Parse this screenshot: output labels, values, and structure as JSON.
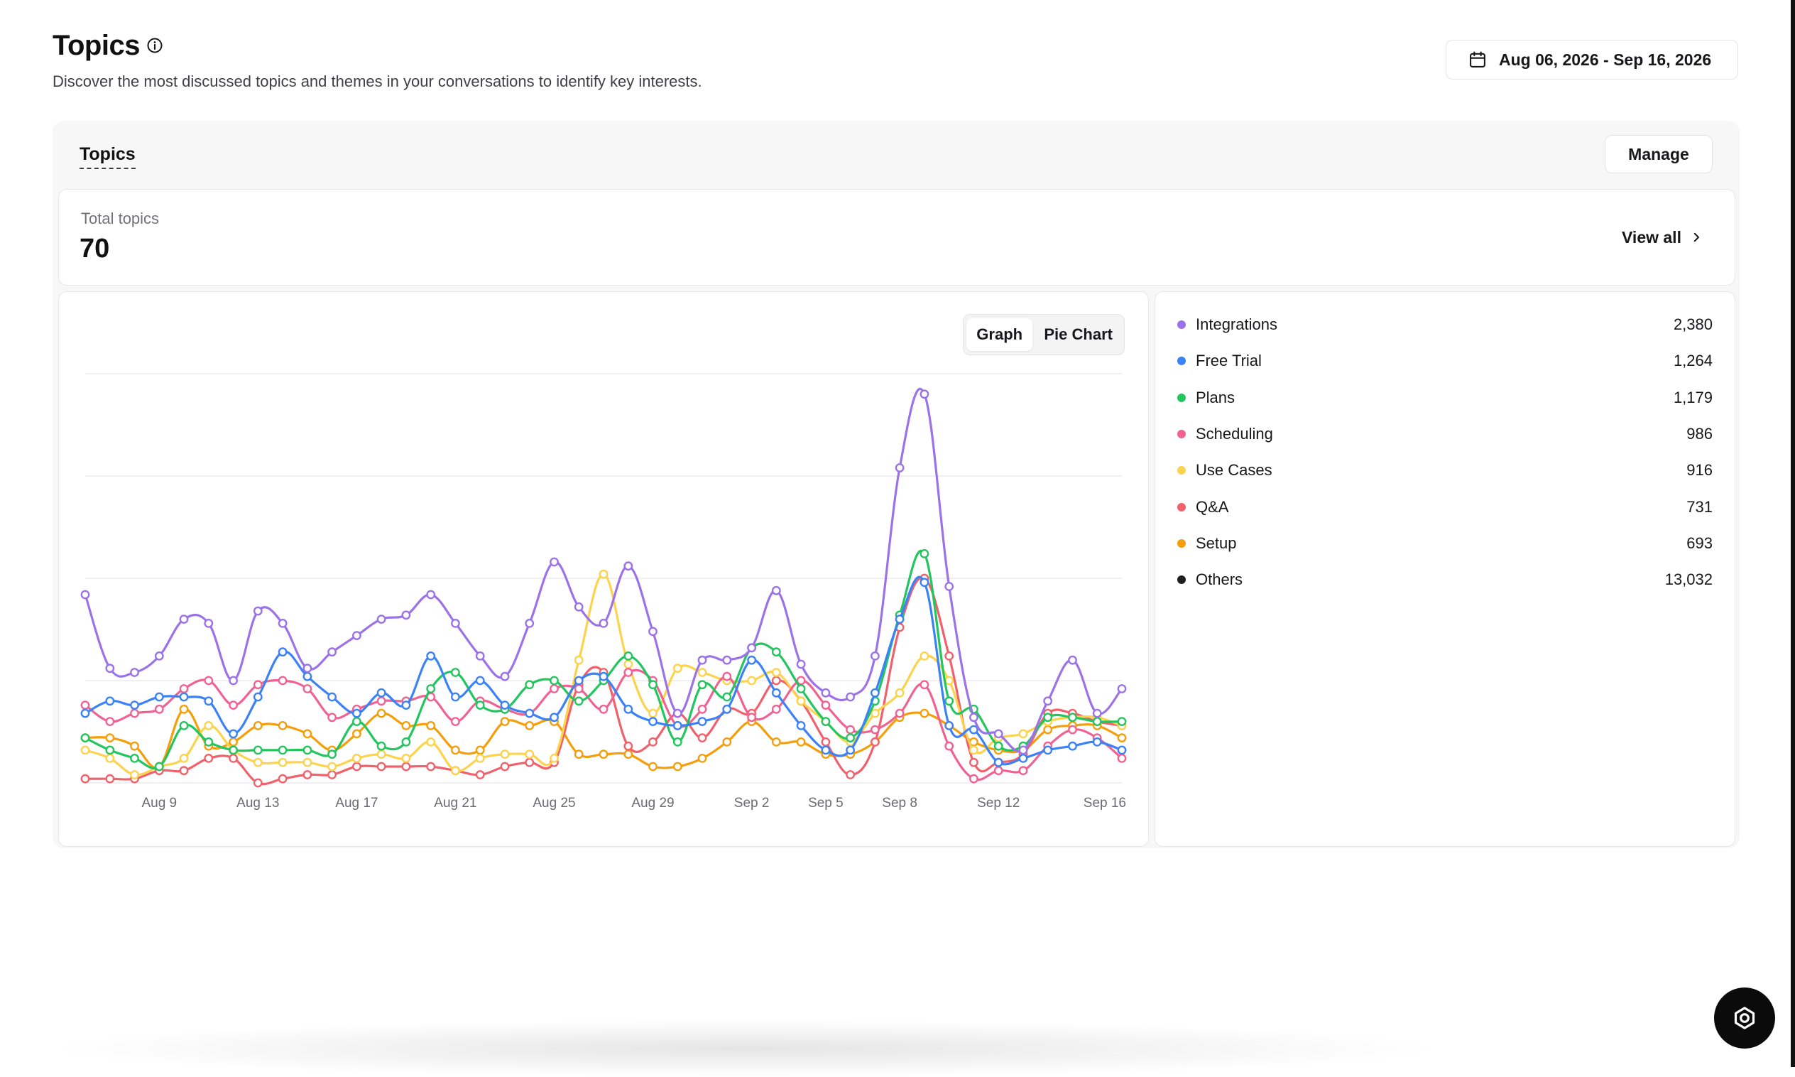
{
  "header": {
    "title": "Topics",
    "subtitle": "Discover the most discussed topics and themes in your conversations to identify key interests.",
    "date_range": "Aug 06, 2026 - Sep 16, 2026"
  },
  "panel": {
    "tab_label": "Topics",
    "manage_label": "Manage",
    "total_label": "Total topics",
    "total_value": "70",
    "view_all_label": "View all"
  },
  "view_toggle": {
    "graph_label": "Graph",
    "pie_label": "Pie Chart",
    "selected": "Graph"
  },
  "legend": [
    {
      "name": "Integrations",
      "value": "2,380",
      "color": "#9b72e8"
    },
    {
      "name": "Free Trial",
      "value": "1,264",
      "color": "#3b82f6"
    },
    {
      "name": "Plans",
      "value": "1,179",
      "color": "#22c55e"
    },
    {
      "name": "Scheduling",
      "value": "986",
      "color": "#f06292"
    },
    {
      "name": "Use Cases",
      "value": "916",
      "color": "#fcd34d"
    },
    {
      "name": "Q&A",
      "value": "731",
      "color": "#f0616b"
    },
    {
      "name": "Setup",
      "value": "693",
      "color": "#f59e0b"
    },
    {
      "name": "Others",
      "value": "13,032",
      "color": "#1f1f1f"
    }
  ],
  "chart_data": {
    "type": "line",
    "title": "",
    "xlabel": "",
    "ylabel": "",
    "x_tick_labels": [
      "Aug 9",
      "Aug 13",
      "Aug 17",
      "Aug 21",
      "Aug 25",
      "Aug 29",
      "Sep 2",
      "Sep 5",
      "Sep 8",
      "Sep 12",
      "Sep 16"
    ],
    "x_tick_index": [
      3,
      7,
      11,
      15,
      19,
      23,
      27,
      30,
      33,
      37,
      41
    ],
    "ylim": [
      0,
      100
    ],
    "grid": true,
    "y_tick_labels_shown": false,
    "series": [
      {
        "name": "Integrations",
        "color": "#9b72e8",
        "values": [
          46,
          28,
          27,
          31,
          40,
          39,
          25,
          42,
          39,
          28,
          32,
          36,
          40,
          41,
          46,
          39,
          31,
          26,
          39,
          54,
          43,
          39,
          53,
          37,
          17,
          30,
          30,
          33,
          47,
          29,
          22,
          21,
          31,
          77,
          95,
          48,
          16,
          12,
          8,
          20,
          30,
          17,
          23
        ]
      },
      {
        "name": "Free Trial",
        "value_note": "",
        "color": "#3b82f6",
        "values": [
          17,
          20,
          19,
          21,
          21,
          20,
          12,
          21,
          32,
          26,
          21,
          17,
          22,
          19,
          31,
          21,
          25,
          19,
          17,
          16,
          25,
          26,
          18,
          15,
          14,
          15,
          18,
          30,
          22,
          14,
          8,
          8,
          22,
          40,
          49,
          14,
          13,
          5,
          6,
          8,
          9,
          10,
          8
        ]
      },
      {
        "name": "Plans",
        "color": "#22c55e",
        "values": [
          11,
          8,
          6,
          4,
          14,
          10,
          8,
          8,
          8,
          8,
          7,
          15,
          9,
          10,
          23,
          27,
          19,
          18,
          24,
          25,
          20,
          25,
          31,
          24,
          10,
          24,
          21,
          33,
          32,
          23,
          15,
          11,
          20,
          41,
          56,
          20,
          18,
          9,
          9,
          16,
          16,
          15,
          15
        ]
      },
      {
        "name": "Scheduling",
        "color": "#f06292",
        "values": [
          19,
          15,
          17,
          18,
          23,
          25,
          19,
          24,
          25,
          23,
          16,
          18,
          20,
          20,
          21,
          15,
          20,
          18,
          17,
          23,
          23,
          18,
          27,
          25,
          14,
          18,
          26,
          16,
          18,
          25,
          19,
          13,
          13,
          17,
          24,
          9,
          1,
          3,
          3,
          9,
          13,
          11,
          6
        ]
      },
      {
        "name": "Use Cases",
        "color": "#fcd34d",
        "values": [
          8,
          6,
          2,
          4,
          6,
          14,
          8,
          5,
          5,
          5,
          4,
          6,
          7,
          6,
          10,
          3,
          6,
          7,
          7,
          6,
          30,
          51,
          29,
          17,
          28,
          27,
          25,
          25,
          27,
          20,
          15,
          10,
          17,
          22,
          31,
          25,
          8,
          11,
          12,
          15,
          16,
          16,
          14
        ]
      },
      {
        "name": "Q&A",
        "color": "#f0616b",
        "values": [
          1,
          1,
          1,
          3,
          3,
          6,
          6,
          0,
          1,
          2,
          2,
          4,
          4,
          4,
          4,
          3,
          2,
          4,
          5,
          5,
          24,
          27,
          9,
          10,
          17,
          11,
          18,
          17,
          25,
          20,
          10,
          2,
          10,
          38,
          50,
          31,
          5,
          5,
          7,
          17,
          17,
          15,
          14
        ]
      },
      {
        "name": "Setup",
        "color": "#f59e0b",
        "values": [
          11,
          11,
          9,
          4,
          18,
          9,
          10,
          14,
          14,
          12,
          8,
          12,
          17,
          14,
          14,
          8,
          8,
          15,
          14,
          15,
          7,
          7,
          7,
          4,
          4,
          6,
          10,
          15,
          10,
          10,
          7,
          7,
          10,
          16,
          17,
          14,
          10,
          8,
          8,
          13,
          14,
          14,
          11
        ]
      }
    ]
  },
  "icons": {
    "info": "info-icon",
    "calendar": "calendar-icon",
    "chevron": "chevron-right-icon",
    "fab": "chat-support-icon"
  }
}
